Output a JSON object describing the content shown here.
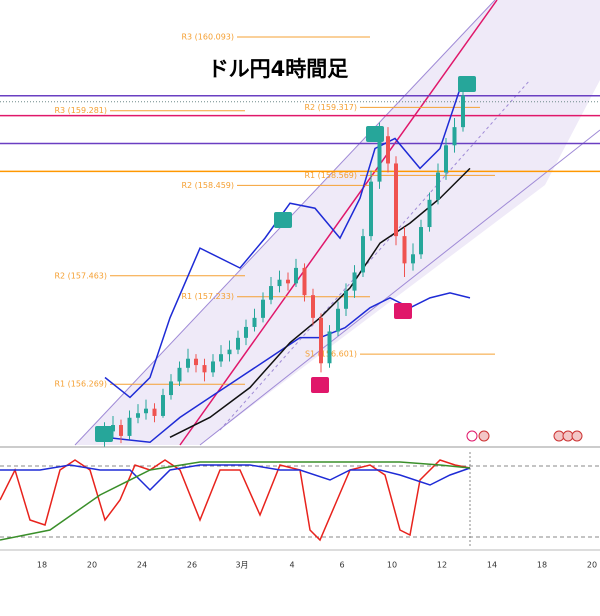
{
  "chart_data": [
    {
      "type": "candlestick",
      "title": "ドル円4時間足",
      "xlim": [
        -0.84,
        11.16
      ],
      "ylim": [
        155.6,
        160.5
      ],
      "up_color": "#26a69a",
      "down_color": "#ef5350",
      "x": [
        1.25,
        1.42,
        1.58,
        1.75,
        1.92,
        2.08,
        2.25,
        2.42,
        2.58,
        2.75,
        2.92,
        3.08,
        3.25,
        3.42,
        3.58,
        3.75,
        3.92,
        4.08,
        4.25,
        4.42,
        4.58,
        4.75,
        4.92,
        5.08,
        5.25,
        5.42,
        5.58,
        5.75,
        5.92,
        6.08,
        6.25,
        6.42,
        6.58,
        6.75,
        6.92,
        7.08,
        7.25,
        7.42,
        7.58,
        7.75,
        7.92,
        8.08,
        8.25,
        8.42
      ],
      "open": [
        155.65,
        155.75,
        155.82,
        155.7,
        155.9,
        155.95,
        156.0,
        155.92,
        156.15,
        156.3,
        156.45,
        156.55,
        156.48,
        156.4,
        156.52,
        156.6,
        156.65,
        156.78,
        156.9,
        157.0,
        157.2,
        157.35,
        157.42,
        157.38,
        157.55,
        157.25,
        157.0,
        156.5,
        156.85,
        157.1,
        157.3,
        157.5,
        157.9,
        158.5,
        159.0,
        158.7,
        157.9,
        157.6,
        157.7,
        158.0,
        158.3,
        158.6,
        158.9,
        159.1
      ],
      "high": [
        155.85,
        155.92,
        155.88,
        155.98,
        156.05,
        156.1,
        156.06,
        156.22,
        156.38,
        156.52,
        156.66,
        156.6,
        156.55,
        156.6,
        156.7,
        156.75,
        156.86,
        156.98,
        157.1,
        157.28,
        157.45,
        157.52,
        157.5,
        157.65,
        157.6,
        157.32,
        157.05,
        156.92,
        157.18,
        157.38,
        157.58,
        157.98,
        158.62,
        159.15,
        159.1,
        158.78,
        158.0,
        157.82,
        158.08,
        158.38,
        158.7,
        158.98,
        159.2,
        159.52
      ],
      "low": [
        155.58,
        155.68,
        155.62,
        155.66,
        155.84,
        155.88,
        155.85,
        155.9,
        156.1,
        156.25,
        156.4,
        156.4,
        156.3,
        156.35,
        156.46,
        156.52,
        156.6,
        156.7,
        156.85,
        156.95,
        157.15,
        157.28,
        157.3,
        157.34,
        157.18,
        156.92,
        156.4,
        156.45,
        156.8,
        157.02,
        157.22,
        157.45,
        157.85,
        158.42,
        158.6,
        157.8,
        157.45,
        157.52,
        157.65,
        157.95,
        158.25,
        158.52,
        158.82,
        159.05
      ],
      "close": [
        155.75,
        155.82,
        155.7,
        155.9,
        155.95,
        156.0,
        155.92,
        156.15,
        156.3,
        156.45,
        156.55,
        156.48,
        156.4,
        156.52,
        156.6,
        156.65,
        156.78,
        156.9,
        157.0,
        157.2,
        157.35,
        157.42,
        157.38,
        157.55,
        157.25,
        157.0,
        156.5,
        156.85,
        157.1,
        157.3,
        157.5,
        157.9,
        158.5,
        159.0,
        158.7,
        157.9,
        157.6,
        157.7,
        158.0,
        158.3,
        158.6,
        158.9,
        159.1,
        159.45
      ],
      "overlays": [
        {
          "color": "#1e2bd6",
          "x": [
            1.26,
            1.76,
            2.16,
            2.56,
            3.16,
            3.96,
            4.46,
            4.96,
            5.46,
            5.96,
            6.36,
            6.66,
            7.06,
            7.56,
            7.96,
            8.36,
            8.56
          ],
          "values": [
            156.343,
            156.124,
            156.343,
            157.001,
            157.768,
            157.549,
            157.878,
            158.262,
            158.207,
            157.878,
            158.317,
            158.865,
            158.975,
            158.646,
            158.865,
            159.523,
            159.632
          ]
        },
        {
          "color": "#1e2bd6",
          "x": [
            1.26,
            2.16,
            2.76,
            3.36,
            3.96,
            4.56,
            5.16,
            5.56,
            6.06,
            6.56,
            6.96,
            7.36,
            7.76,
            8.16,
            8.56
          ],
          "values": [
            155.685,
            155.63,
            155.904,
            156.124,
            156.343,
            156.562,
            156.782,
            156.782,
            156.891,
            157.111,
            157.22,
            157.111,
            157.22,
            157.275,
            157.22
          ]
        },
        {
          "color": "#111111",
          "x": [
            2.56,
            3.36,
            4.16,
            4.96,
            5.56,
            6.16,
            6.76,
            7.36,
            7.96,
            8.56
          ],
          "values": [
            155.685,
            155.905,
            156.233,
            156.727,
            157.001,
            157.33,
            157.823,
            158.043,
            158.317,
            158.646
          ]
        }
      ],
      "pivot_color": "#f5a033",
      "pivots": [
        {
          "label": "R3 (160.093)",
          "value": 160.093,
          "xrange": [
            3.9,
            6.56
          ]
        },
        {
          "label": "R3 (159.281)",
          "value": 159.281,
          "xrange": [
            1.36,
            4.06
          ]
        },
        {
          "label": "R2 (159.317)",
          "value": 159.317,
          "xrange": [
            6.36,
            8.76
          ]
        },
        {
          "label": "R2 (158.459)",
          "value": 158.459,
          "xrange": [
            3.9,
            6.56
          ]
        },
        {
          "label": "R1 (158.569)",
          "value": 158.569,
          "xrange": [
            6.36,
            9.06
          ]
        },
        {
          "label": "R2 (157.463)",
          "value": 157.463,
          "xrange": [
            1.36,
            4.06
          ]
        },
        {
          "label": "R1 (157.233)",
          "value": 157.233,
          "xrange": [
            3.9,
            6.56
          ]
        },
        {
          "label": "S1 (156.601)",
          "value": 156.601,
          "xrange": [
            6.36,
            9.06
          ]
        },
        {
          "label": "R1 (156.269)",
          "value": 156.269,
          "xrange": [
            1.36,
            4.06
          ]
        }
      ],
      "hlines": [
        {
          "value": 159.446,
          "color": "#6a3fc2",
          "style": "solid"
        },
        {
          "value": 159.38,
          "color": "#6f8a8a",
          "style": "dotted"
        },
        {
          "value": 159.227,
          "color": "#e0176a",
          "style": "solid"
        },
        {
          "value": 158.92,
          "color": "#6a3fc2",
          "style": "solid"
        },
        {
          "value": 158.613,
          "color": "#ff9800",
          "style": "solid"
        }
      ]
    },
    {
      "type": "line",
      "xlim": [
        -0.84,
        11.16
      ],
      "ylim": [
        0,
        100
      ],
      "series": [
        {
          "color": "#e8231d",
          "x": [
            -0.84,
            -0.54,
            -0.24,
            0.06,
            0.36,
            0.66,
            0.96,
            1.26,
            1.56,
            1.86,
            2.16,
            2.46,
            2.76,
            3.16,
            3.56,
            3.96,
            4.36,
            4.76,
            5.16,
            5.36,
            5.56,
            5.86,
            6.16,
            6.56,
            6.86,
            7.16,
            7.36,
            7.56,
            7.96,
            8.26,
            8.56
          ],
          "values": [
            50,
            87.5,
            25,
            18.75,
            87.5,
            100,
            87.5,
            25,
            50,
            93.75,
            87.5,
            100,
            87.5,
            25,
            87.5,
            87.5,
            31.25,
            93.75,
            87.5,
            12.5,
            0,
            43.75,
            87.5,
            93.75,
            81.25,
            12.5,
            6.25,
            75,
            100,
            93.75,
            90
          ]
        },
        {
          "color": "#1e2bd6",
          "x": [
            -0.84,
            -0.04,
            0.56,
            1.16,
            1.76,
            2.16,
            2.56,
            3.16,
            4.16,
            4.76,
            5.16,
            5.76,
            6.16,
            6.76,
            7.16,
            7.76,
            8.16,
            8.56
          ],
          "values": [
            87.5,
            87.5,
            93.75,
            87.5,
            87.5,
            62.5,
            87.5,
            93.75,
            93.75,
            87.5,
            87.5,
            75,
            87.5,
            87.5,
            81.25,
            68.75,
            81.25,
            90
          ]
        },
        {
          "color": "#3a8f2a",
          "x": [
            -0.84,
            0.16,
            1.16,
            2.16,
            3.16,
            5.16,
            7.16,
            7.96,
            8.56
          ],
          "values": [
            0,
            12.5,
            56.25,
            87.5,
            97.5,
            97.5,
            97.5,
            93.75,
            90
          ]
        }
      ],
      "xticks": [
        {
          "value": 0,
          "label": "18"
        },
        {
          "value": 1,
          "label": "20"
        },
        {
          "value": 2,
          "label": "24"
        },
        {
          "value": 3,
          "label": "26"
        },
        {
          "value": 4,
          "label": "3月"
        },
        {
          "value": 5,
          "label": "4"
        },
        {
          "value": 6,
          "label": "6"
        },
        {
          "value": 7,
          "label": "10"
        },
        {
          "value": 8,
          "label": "12"
        },
        {
          "value": 9,
          "label": "14"
        },
        {
          "value": 10,
          "label": "18"
        },
        {
          "value": 11,
          "label": "20"
        }
      ]
    }
  ]
}
